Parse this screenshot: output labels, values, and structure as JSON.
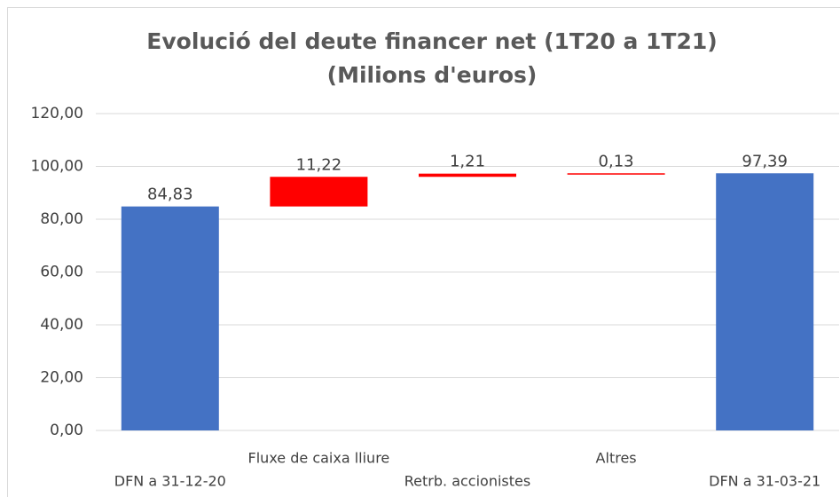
{
  "chart_data": {
    "type": "waterfall",
    "title": "Evolució del deute financer net (1T20 a 1T21)",
    "subtitle": "(Milions d'euros)",
    "categories": [
      "DFN a 31-12-20",
      "Fluxe de caixa lliure",
      "Retrb. accionistes",
      "Altres",
      "DFN a 31-03-21"
    ],
    "values": [
      84.83,
      11.22,
      1.21,
      0.13,
      97.39
    ],
    "value_labels": [
      "84,83",
      "11,22",
      "1,21",
      "0,13",
      "97,39"
    ],
    "colors": [
      "#4472c4",
      "#ff0000",
      "#ff0000",
      "#ff0000",
      "#4472c4"
    ],
    "ylim": [
      0,
      120
    ],
    "yticks": [
      {
        "value": 0,
        "label": "0,00"
      },
      {
        "value": 20,
        "label": "20,00"
      },
      {
        "value": 40,
        "label": "40,00"
      },
      {
        "value": 60,
        "label": "60,00"
      },
      {
        "value": 80,
        "label": "80,00"
      },
      {
        "value": 100,
        "label": "100,00"
      },
      {
        "value": 120,
        "label": "120,00"
      }
    ],
    "grid": true
  }
}
